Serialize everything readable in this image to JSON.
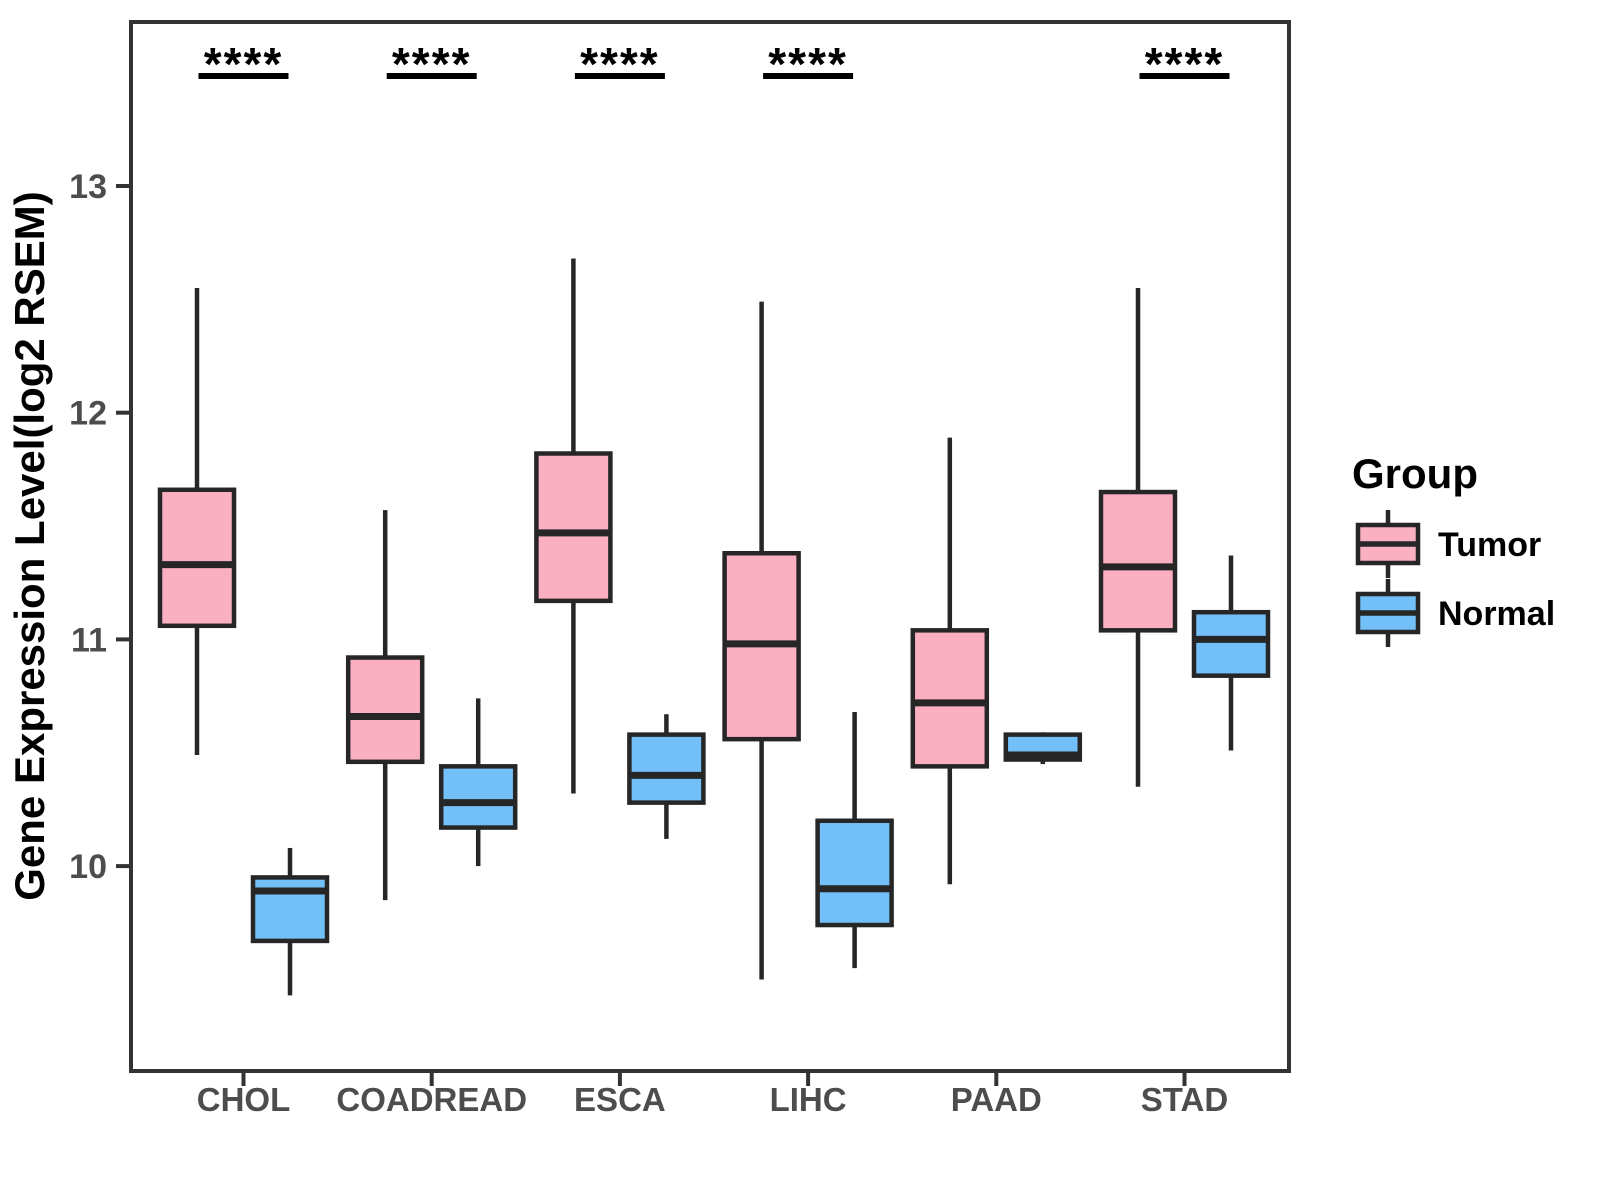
{
  "chart_data": {
    "type": "boxplot",
    "title": "",
    "xlabel": "",
    "ylabel": "Gene Expression Level(log2 RSEM)",
    "categories": [
      "CHOL",
      "COADREAD",
      "ESCA",
      "LIHC",
      "PAAD",
      "STAD"
    ],
    "y_ticks": [
      10,
      11,
      12,
      13
    ],
    "ylim": [
      9.1,
      13.7
    ],
    "grid": false,
    "panel_border": true,
    "legend": {
      "title": "Group",
      "position": "right",
      "entries": [
        {
          "label": "Tumor",
          "color": "#FBB0C2"
        },
        {
          "label": "Normal",
          "color": "#73BFF7"
        }
      ]
    },
    "series": [
      {
        "name": "Tumor",
        "color": "#FBB0C2",
        "boxes": [
          {
            "category": "CHOL",
            "min": 10.49,
            "q1": 11.06,
            "median": 11.33,
            "q3": 11.66,
            "max": 12.55
          },
          {
            "category": "COADREAD",
            "min": 9.85,
            "q1": 10.46,
            "median": 10.66,
            "q3": 10.92,
            "max": 11.57
          },
          {
            "category": "ESCA",
            "min": 10.32,
            "q1": 11.17,
            "median": 11.47,
            "q3": 11.82,
            "max": 12.68
          },
          {
            "category": "LIHC",
            "min": 9.5,
            "q1": 10.56,
            "median": 10.98,
            "q3": 11.38,
            "max": 12.49
          },
          {
            "category": "PAAD",
            "min": 9.92,
            "q1": 10.44,
            "median": 10.72,
            "q3": 11.04,
            "max": 11.89
          },
          {
            "category": "STAD",
            "min": 10.35,
            "q1": 11.04,
            "median": 11.32,
            "q3": 11.65,
            "max": 12.55
          }
        ]
      },
      {
        "name": "Normal",
        "color": "#73BFF7",
        "boxes": [
          {
            "category": "CHOL",
            "min": 9.43,
            "q1": 9.67,
            "median": 9.89,
            "q3": 9.95,
            "max": 10.08
          },
          {
            "category": "COADREAD",
            "min": 10.0,
            "q1": 10.17,
            "median": 10.28,
            "q3": 10.44,
            "max": 10.74
          },
          {
            "category": "ESCA",
            "min": 10.12,
            "q1": 10.28,
            "median": 10.4,
            "q3": 10.58,
            "max": 10.67
          },
          {
            "category": "LIHC",
            "min": 9.55,
            "q1": 9.74,
            "median": 9.9,
            "q3": 10.2,
            "max": 10.68
          },
          {
            "category": "PAAD",
            "min": 10.45,
            "q1": 10.47,
            "median": 10.49,
            "q3": 10.58,
            "max": 10.59
          },
          {
            "category": "STAD",
            "min": 10.51,
            "q1": 10.84,
            "median": 11.0,
            "q3": 11.12,
            "max": 11.37
          }
        ]
      }
    ],
    "annotations": [
      {
        "category": "CHOL",
        "label": "****"
      },
      {
        "category": "COADREAD",
        "label": "****"
      },
      {
        "category": "ESCA",
        "label": "****"
      },
      {
        "category": "LIHC",
        "label": "****"
      },
      {
        "category": "STAD",
        "label": "****"
      }
    ],
    "colors": {
      "box_stroke": "#262626",
      "axis_text": "#4d4d4d",
      "axis_line": "#333333",
      "annotation": "#000000",
      "background": "#ffffff"
    }
  }
}
